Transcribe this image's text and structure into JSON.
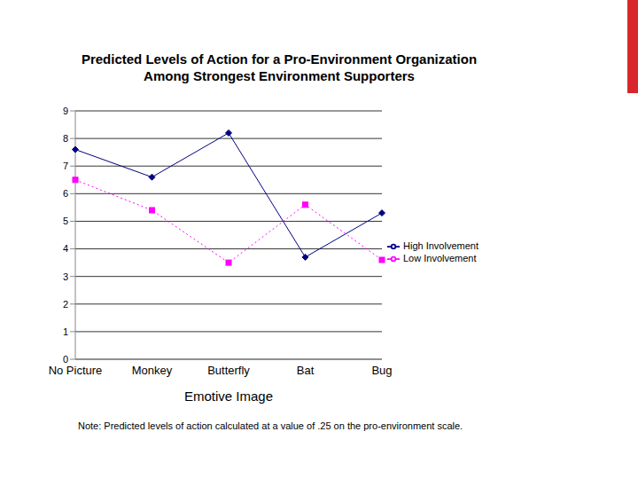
{
  "chart_data": {
    "type": "line",
    "title": "Predicted Levels of Action for a Pro-Environment Organization Among Strongest Environment Supporters",
    "x_label": "Emotive Image",
    "note": "Note: Predicted levels of action calculated at a value of .25 on the pro-environment scale.",
    "categories": [
      "No Picture",
      "Monkey",
      "Butterfly",
      "Bat",
      "Bug"
    ],
    "series": [
      {
        "name": "High Involvement",
        "color": "#000080",
        "marker": "diamond",
        "line_style": "solid",
        "values": [
          7.6,
          6.6,
          8.2,
          3.7,
          5.3
        ]
      },
      {
        "name": "Low Involvement",
        "color": "#ff00ff",
        "marker": "square",
        "line_style": "dotted",
        "values": [
          6.5,
          5.4,
          3.5,
          5.6,
          3.6
        ]
      }
    ],
    "ylim": [
      0,
      9
    ],
    "yticks": [
      0,
      1,
      2,
      3,
      4,
      5,
      6,
      7,
      8,
      9
    ],
    "grid": true,
    "legend": "right"
  }
}
